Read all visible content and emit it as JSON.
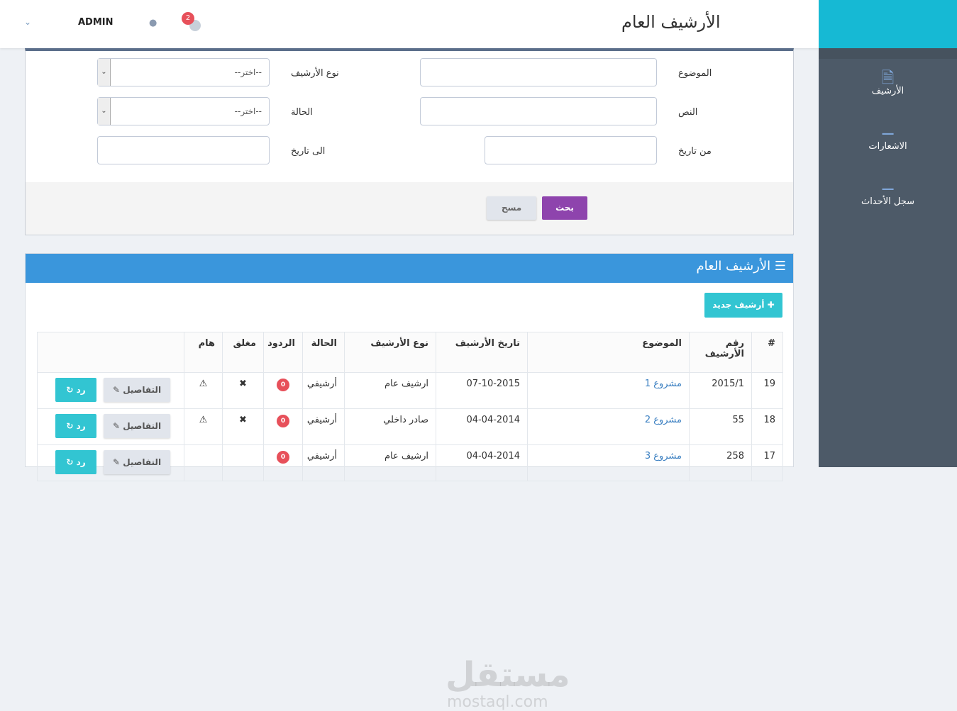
{
  "header": {
    "title": "الأرشيف العام",
    "user": "ADMIN",
    "notification_count": "2"
  },
  "sidebar": {
    "items": [
      {
        "label": "الأرشيف",
        "icon": "file-zip-icon"
      },
      {
        "label": "الاشعارات",
        "icon": "bell-icon"
      },
      {
        "label": "سجل الأحداث",
        "icon": "bell-icon"
      }
    ]
  },
  "search": {
    "subject_label": "الموضوع",
    "type_label": "نوع الأرشيف",
    "type_value": "--اختر--",
    "text_label": "النص",
    "status_label": "الحالة",
    "status_value": "--اختر--",
    "from_label": "من تاريخ",
    "to_label": "الى تاريخ",
    "search_btn": "بحث",
    "clear_btn": "مسح"
  },
  "archive": {
    "title": "الأرشيف العام",
    "new_btn": "أرشيف جديد",
    "columns": [
      "#",
      "رقم الأرشيف",
      "الموضوع",
      "تاريخ الأرشيف",
      "نوع الأرشيف",
      "الحالة",
      "الردود",
      "مغلق",
      "هام",
      ""
    ],
    "rows": [
      {
        "n": "19",
        "num": "2015/1",
        "subject": "مشروع 1",
        "date": "07-10-2015",
        "type": "ارشيف عام",
        "status": "أرشيفي",
        "replies": "0",
        "closed": true,
        "important": true
      },
      {
        "n": "18",
        "num": "55",
        "subject": "مشروع 2",
        "date": "04-04-2014",
        "type": "صادر داخلي",
        "status": "أرشيفي",
        "replies": "0",
        "closed": true,
        "important": true
      },
      {
        "n": "17",
        "num": "258",
        "subject": "مشروع 3",
        "date": "04-04-2014",
        "type": "ارشيف عام",
        "status": "أرشيفي",
        "replies": "0",
        "closed": false,
        "important": false
      }
    ],
    "details_btn": "التفاصيل",
    "reply_btn": "رد"
  },
  "watermark": "مستقل mostaql.com",
  "colors": {
    "accent": "#16b9d4",
    "header_blue": "#3a96dc",
    "search": "#8e44ad",
    "sidebar": "#4d5a68"
  }
}
